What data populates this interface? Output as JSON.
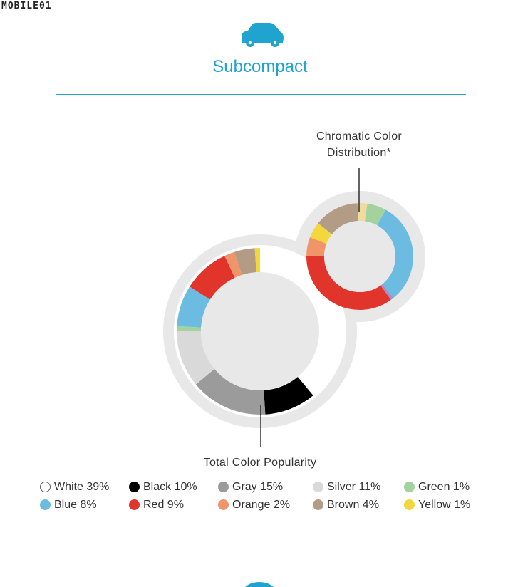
{
  "watermark": "MOBILE01",
  "header": {
    "title": "Subcompact"
  },
  "colors": {
    "accent": "#1fa3cf"
  },
  "icons": {
    "header": "subcompact-car-icon"
  },
  "chart_data": [
    {
      "type": "pie",
      "variant": "donut",
      "label": "Total Color Popularity",
      "start_angle_deg": 0,
      "slices": [
        {
          "name": "White",
          "value": 39,
          "color": "#ffffff"
        },
        {
          "name": "Black",
          "value": 10,
          "color": "#000000"
        },
        {
          "name": "Gray",
          "value": 15,
          "color": "#9b9b9b"
        },
        {
          "name": "Silver",
          "value": 11,
          "color": "#d9d9d9"
        },
        {
          "name": "Green",
          "value": 1,
          "color": "#a3d29f"
        },
        {
          "name": "Blue",
          "value": 8,
          "color": "#6bbce0"
        },
        {
          "name": "Red",
          "value": 9,
          "color": "#e1352b"
        },
        {
          "name": "Orange",
          "value": 2,
          "color": "#f0946a"
        },
        {
          "name": "Brown",
          "value": 4,
          "color": "#b29c86"
        },
        {
          "name": "Yellow",
          "value": 1,
          "color": "#f2d83c"
        }
      ],
      "legend": [
        {
          "label": "White 39%",
          "color": "#ffffff"
        },
        {
          "label": "Black 10%",
          "color": "#000000"
        },
        {
          "label": "Gray 15%",
          "color": "#9b9b9b"
        },
        {
          "label": "Silver 11%",
          "color": "#d9d9d9"
        },
        {
          "label": "Green 1%",
          "color": "#a3d29f"
        },
        {
          "label": "Blue 8%",
          "color": "#6bbce0"
        },
        {
          "label": "Red 9%",
          "color": "#e1352b"
        },
        {
          "label": "Orange 2%",
          "color": "#f0946a"
        },
        {
          "label": "Brown 4%",
          "color": "#b29c86"
        },
        {
          "label": "Yellow 1%",
          "color": "#f2d83c"
        }
      ]
    },
    {
      "type": "pie",
      "variant": "donut",
      "label": "Chromatic Color Distribution*",
      "start_angle_deg": 8,
      "slices": [
        {
          "name": "Green",
          "value": 6,
          "color": "#a3d29f"
        },
        {
          "name": "Blue",
          "value": 32,
          "color": "#6bbce0"
        },
        {
          "name": "Purple",
          "value": 1,
          "color": "#a58fc9"
        },
        {
          "name": "Red",
          "value": 36,
          "color": "#e1352b"
        },
        {
          "name": "Orange",
          "value": 6,
          "color": "#f0946a"
        },
        {
          "name": "Yellow",
          "value": 5,
          "color": "#f2d83c"
        },
        {
          "name": "Brown",
          "value": 14,
          "color": "#b29c86"
        },
        {
          "name": "Beige",
          "value": 3,
          "color": "#eedc9e"
        }
      ]
    }
  ]
}
